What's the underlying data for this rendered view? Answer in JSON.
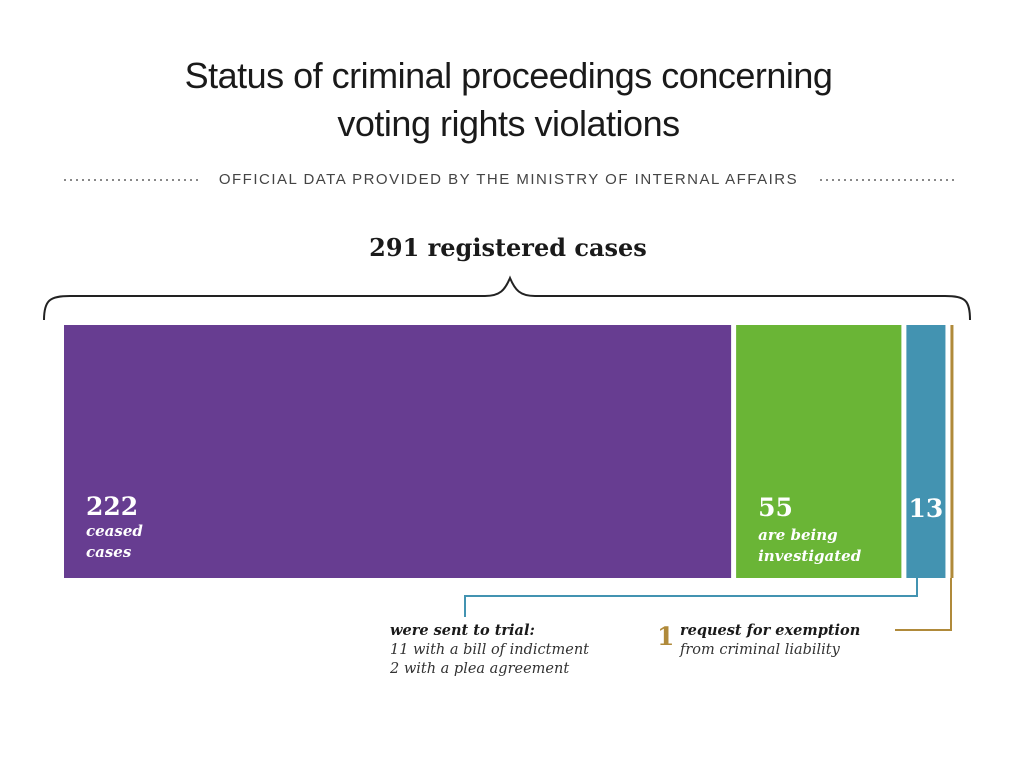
{
  "chart_data": {
    "type": "stacked-bar",
    "title": "Status of criminal proceedings concerning voting rights violations",
    "subtitle": "OFFICIAL DATA PROVIDED BY THE MINISTRY OF INTERNAL AFFAIRS",
    "annotation": "291 registered cases",
    "segments": [
      {
        "value": 222,
        "label": [
          "ceased",
          "cases"
        ],
        "color": "#673d91"
      },
      {
        "value": 55,
        "label": [
          "are being",
          "investigated"
        ],
        "color": "#6ab536"
      },
      {
        "value": 13,
        "color": "#4393b1"
      },
      {
        "value": 1,
        "color": "#b08a3a"
      }
    ],
    "callouts": [
      {
        "heading": "were sent to trial:",
        "lines": [
          "11 with a bill of indictment",
          "2 with a plea agreement"
        ]
      },
      {
        "heading": "request for exemption",
        "lines": [
          "from criminal liability"
        ]
      }
    ]
  }
}
